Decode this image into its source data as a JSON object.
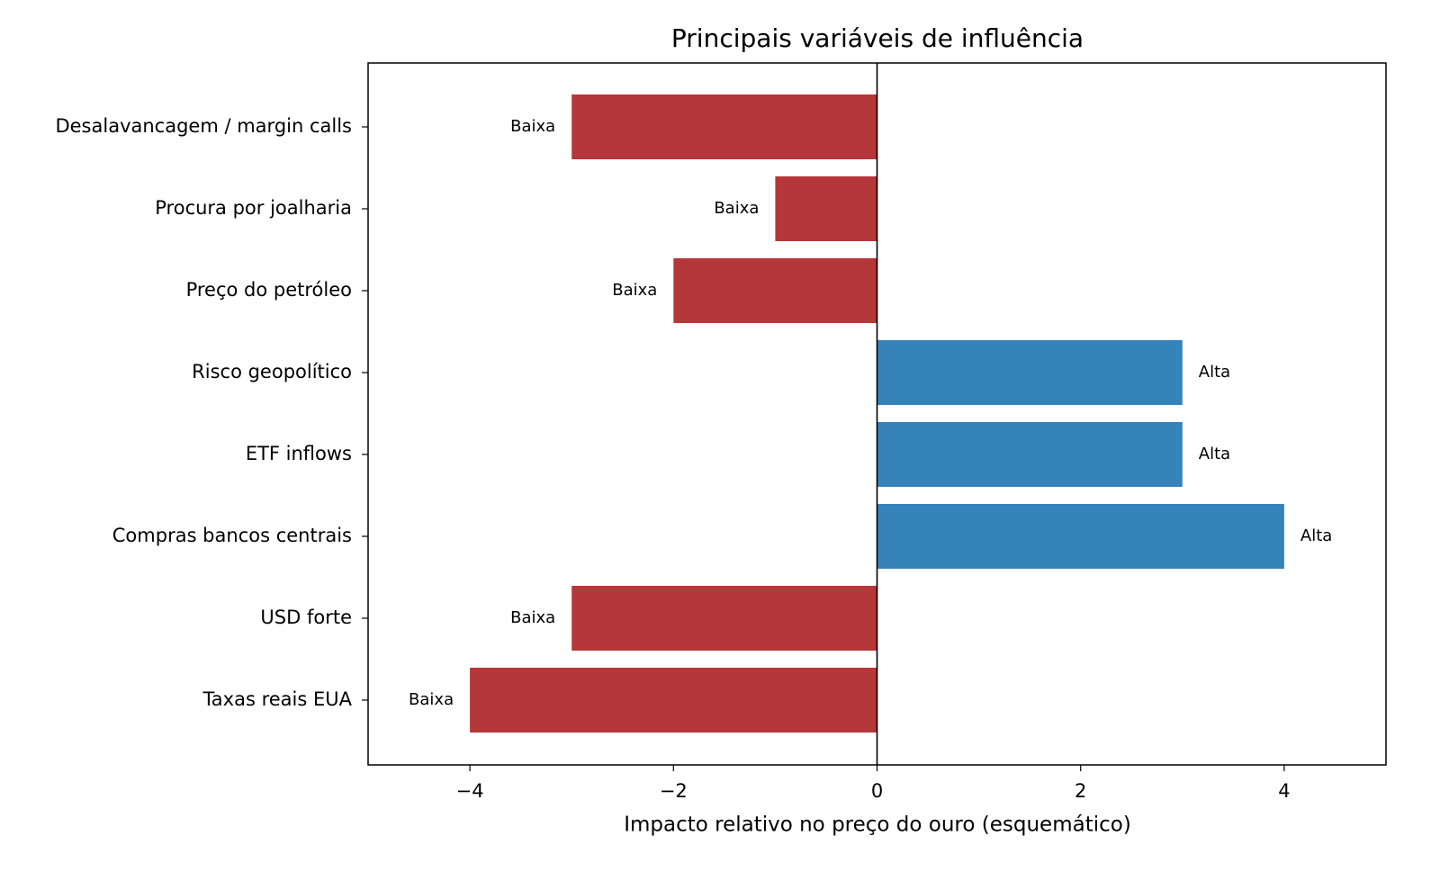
{
  "chart_data": {
    "type": "barh",
    "title": "Principais variáveis de influência",
    "x_label": "Impacto relativo no preço do ouro (esquemático)",
    "categories": [
      "Taxas reais EUA",
      "USD forte",
      "Compras bancos centrais",
      "ETF inflows",
      "Risco geopolítico",
      "Preço do petróleo",
      "Procura por joalharia",
      "Desalavancagem / margin calls"
    ],
    "values": [
      -4,
      -3,
      4,
      3,
      3,
      -2,
      -1,
      -3
    ],
    "bar_labels": [
      "Baixa",
      "Baixa",
      "Alta",
      "Alta",
      "Alta",
      "Baixa",
      "Baixa",
      "Baixa"
    ],
    "colors": [
      "#b5373a",
      "#b5373a",
      "#3683bb",
      "#3683bb",
      "#3683bb",
      "#b5373a",
      "#b5373a",
      "#b5373a"
    ],
    "xlim": [
      -5,
      5
    ],
    "xticks": [
      {
        "value": -4,
        "label": "−4"
      },
      {
        "value": -2,
        "label": "−2"
      },
      0,
      2,
      4
    ]
  }
}
